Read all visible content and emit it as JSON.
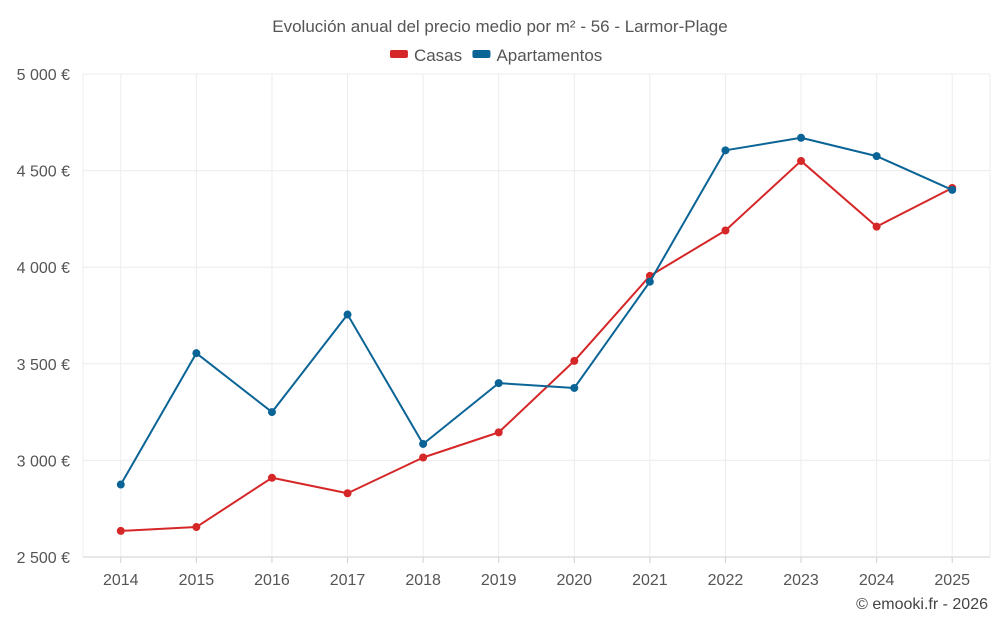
{
  "chart_data": {
    "type": "line",
    "title": "Evolución anual del precio medio por m² - 56 - Larmor-Plage",
    "categories": [
      "2014",
      "2015",
      "2016",
      "2017",
      "2018",
      "2019",
      "2020",
      "2021",
      "2022",
      "2023",
      "2024",
      "2025"
    ],
    "series": [
      {
        "name": "Casas",
        "color": "#d62728",
        "values": [
          2635,
          2655,
          2910,
          2830,
          3015,
          3145,
          3515,
          3955,
          4190,
          4550,
          4210,
          4410
        ]
      },
      {
        "name": "Apartamentos",
        "color": "#0a6496",
        "values": [
          2875,
          3555,
          3250,
          3755,
          3085,
          3400,
          3375,
          3925,
          4605,
          4670,
          4575,
          4400
        ]
      }
    ],
    "ylim": [
      2500,
      5000
    ],
    "yticks": [
      2500,
      3000,
      3500,
      4000,
      4500,
      5000
    ],
    "ytick_labels": [
      "2 500 €",
      "3 000 €",
      "3 500 €",
      "4 000 €",
      "4 500 €",
      "5 000 €"
    ],
    "xlabel": "",
    "ylabel": "",
    "grid": true,
    "legend_position": "top-center"
  },
  "credit": "© emooki.fr - 2026"
}
